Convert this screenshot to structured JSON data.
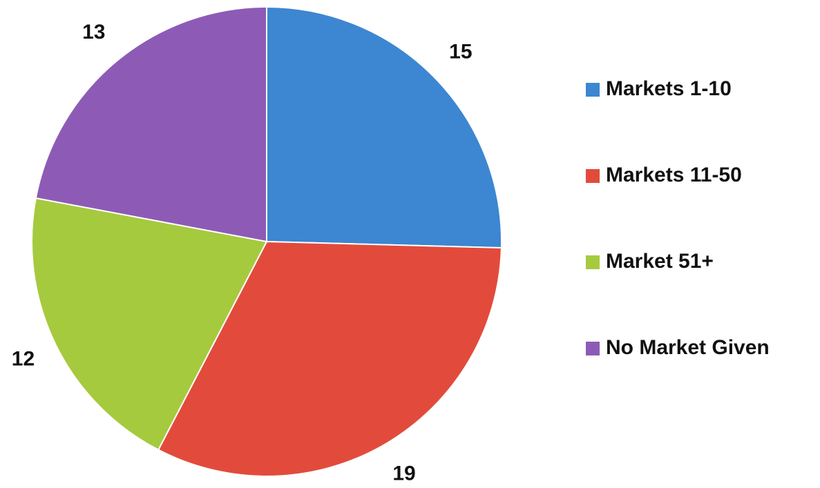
{
  "chart_data": {
    "type": "pie",
    "categories": [
      "Markets 1-10",
      "Markets 11-50",
      "Market 51+",
      "No Market Given"
    ],
    "values": [
      15,
      19,
      12,
      13
    ],
    "colors": [
      "#3d86d1",
      "#e24b3b",
      "#a5ca3e",
      "#8d5bb5"
    ],
    "legend": "right"
  }
}
